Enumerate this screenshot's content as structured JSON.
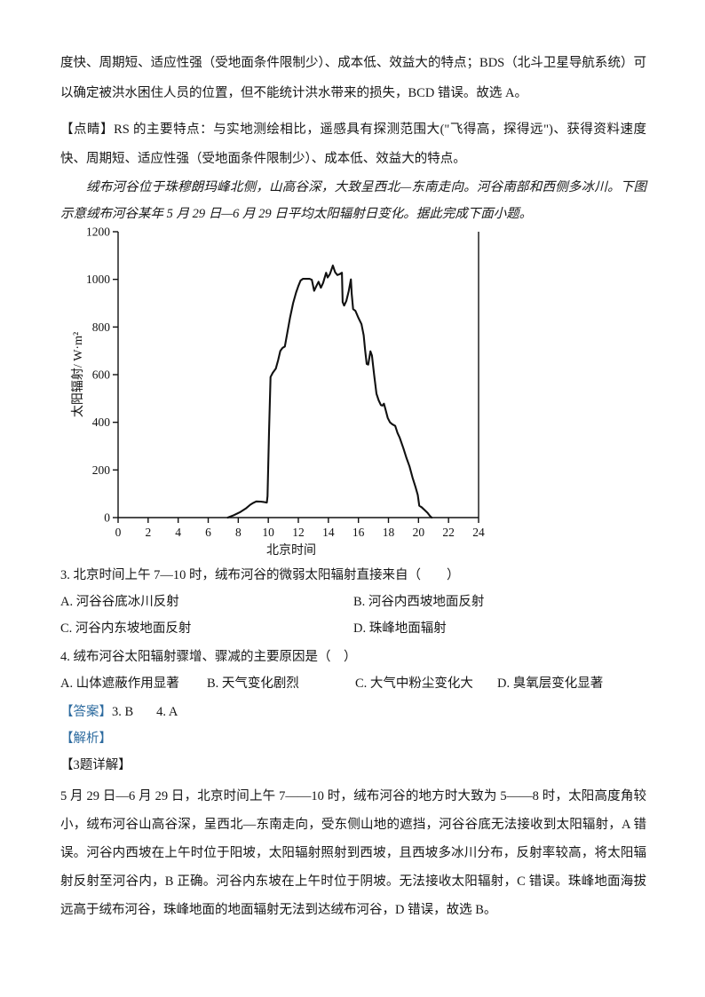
{
  "accent_blue": "#2d6b9f",
  "paragraphs": {
    "p1": "度快、周期短、适应性强（受地面条件限制少）、成本低、效益大的特点；BDS（北斗卫星导航系统）可以确定被洪水困住人员的位置，但不能统计洪水带来的损失，BCD 错误。故选 A。",
    "p2_label": "【点睛】",
    "p2_text": "RS 的主要特点：与实地测绘相比，遥感具有探测范围大(\"飞得高，探得远\")、获得资料速度快、周期短、适应性强（受地面条件限制少）、成本低、效益大的特点。",
    "intro": "绒布河谷位于珠穆朗玛峰北侧，山高谷深，大致呈西北—东南走向。河谷南部和西侧多冰川。下图示意绒布河谷某年 5 月 29 日—6 月 29 日平均太阳辐射日变化。据此完成下面小题。"
  },
  "chart_data": {
    "type": "line",
    "title": "绒布河谷某年5月29日—6月29日平均太阳辐射日变化",
    "xlabel": "北京时间",
    "ylabel": "太阳辐射/ W·m²",
    "xlim": [
      0,
      24
    ],
    "ylim": [
      0,
      1200
    ],
    "xticks": [
      0,
      2,
      4,
      6,
      8,
      10,
      12,
      14,
      16,
      18,
      20,
      22,
      24
    ],
    "yticks": [
      0,
      200,
      400,
      600,
      800,
      1000,
      1200
    ],
    "grid": false,
    "legend": "none",
    "line_color": "#111111",
    "points": [
      [
        7.3,
        0
      ],
      [
        7.7,
        10
      ],
      [
        8.1,
        22
      ],
      [
        8.5,
        38
      ],
      [
        8.8,
        54
      ],
      [
        9.0,
        62
      ],
      [
        9.2,
        68
      ],
      [
        9.5,
        67
      ],
      [
        9.75,
        65
      ],
      [
        9.9,
        63
      ],
      [
        9.95,
        90
      ],
      [
        10.05,
        360
      ],
      [
        10.15,
        590
      ],
      [
        10.3,
        608
      ],
      [
        10.5,
        625
      ],
      [
        10.65,
        660
      ],
      [
        10.8,
        700
      ],
      [
        10.95,
        712
      ],
      [
        11.1,
        718
      ],
      [
        11.25,
        770
      ],
      [
        11.45,
        840
      ],
      [
        11.65,
        900
      ],
      [
        11.85,
        945
      ],
      [
        12.0,
        972
      ],
      [
        12.15,
        995
      ],
      [
        12.3,
        1002
      ],
      [
        12.75,
        1002
      ],
      [
        12.9,
        998
      ],
      [
        13.05,
        952
      ],
      [
        13.2,
        972
      ],
      [
        13.35,
        990
      ],
      [
        13.5,
        965
      ],
      [
        13.65,
        985
      ],
      [
        13.85,
        1028
      ],
      [
        13.95,
        1008
      ],
      [
        14.1,
        1022
      ],
      [
        14.3,
        1058
      ],
      [
        14.45,
        1030
      ],
      [
        14.6,
        1018
      ],
      [
        14.75,
        1022
      ],
      [
        14.9,
        1028
      ],
      [
        14.95,
        905
      ],
      [
        15.05,
        890
      ],
      [
        15.2,
        910
      ],
      [
        15.35,
        950
      ],
      [
        15.5,
        1000
      ],
      [
        15.55,
        940
      ],
      [
        15.65,
        875
      ],
      [
        15.8,
        868
      ],
      [
        16.0,
        838
      ],
      [
        16.2,
        812
      ],
      [
        16.35,
        765
      ],
      [
        16.45,
        700
      ],
      [
        16.55,
        645
      ],
      [
        16.65,
        642
      ],
      [
        16.8,
        698
      ],
      [
        16.9,
        680
      ],
      [
        17.05,
        598
      ],
      [
        17.2,
        520
      ],
      [
        17.35,
        492
      ],
      [
        17.5,
        472
      ],
      [
        17.6,
        470
      ],
      [
        17.7,
        478
      ],
      [
        17.8,
        455
      ],
      [
        17.95,
        418
      ],
      [
        18.1,
        400
      ],
      [
        18.25,
        392
      ],
      [
        18.45,
        385
      ],
      [
        18.6,
        355
      ],
      [
        18.75,
        335
      ],
      [
        19.0,
        290
      ],
      [
        19.2,
        250
      ],
      [
        19.4,
        215
      ],
      [
        19.6,
        168
      ],
      [
        19.8,
        128
      ],
      [
        19.95,
        95
      ],
      [
        20.05,
        50
      ],
      [
        20.2,
        44
      ],
      [
        20.4,
        32
      ],
      [
        20.6,
        20
      ],
      [
        20.75,
        8
      ],
      [
        20.88,
        0
      ]
    ]
  },
  "questions": {
    "q3": {
      "stem": "3. 北京时间上午 7—10 时，绒布河谷的微弱太阳辐射直接来自（　　）",
      "options": [
        "A. 河谷谷底冰川反射",
        "B. 河谷内西坡地面反射",
        "C. 河谷内东坡地面反射",
        "D. 珠峰地面辐射"
      ]
    },
    "q4": {
      "stem": "4. 绒布河谷太阳辐射骤增、骤减的主要原因是（　）",
      "options": [
        "A. 山体遮蔽作用显著",
        "B. 天气变化剧烈",
        "C. 大气中粉尘变化大",
        "D. 臭氧层变化显著"
      ]
    }
  },
  "answer": {
    "label": "【答案】",
    "q3": "3. B",
    "q4": "4. A"
  },
  "analysis": {
    "label": "【解析】",
    "detail3_label": "【3题详解】",
    "detail3_text": "5 月 29 日—6 月 29 日，北京时间上午 7——10 时，绒布河谷的地方时大致为 5——8 时，太阳高度角较小，绒布河谷山高谷深，呈西北—东南走向，受东侧山地的遮挡，河谷谷底无法接收到太阳辐射，A 错误。河谷内西坡在上午时位于阳坡，太阳辐射照射到西坡，且西坡多冰川分布，反射率较高，将太阳辐射反射至河谷内，B 正确。河谷内东坡在上午时位于阴坡。无法接收太阳辐射，C 错误。珠峰地面海拔远高于绒布河谷，珠峰地面的地面辐射无法到达绒布河谷，D 错误，故选 B。"
  }
}
